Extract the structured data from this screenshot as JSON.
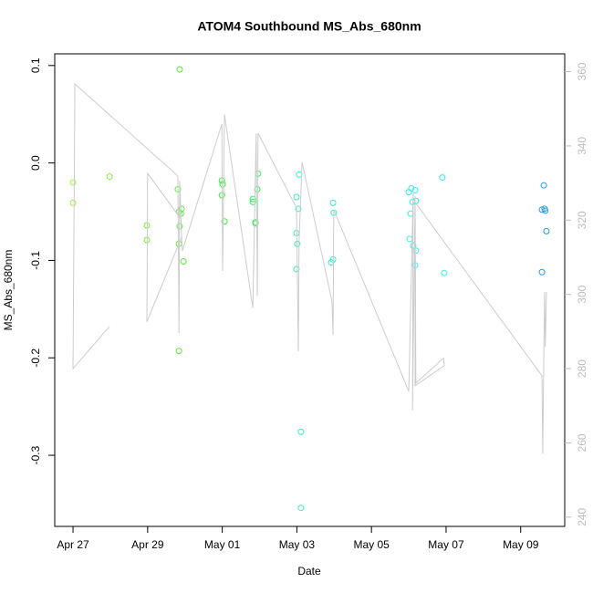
{
  "chart_data": {
    "type": "scatter",
    "title": "ATOM4 Southbound MS_Abs_680nm",
    "xlabel": "Date",
    "ylabel": "MS_Abs_680nm",
    "xlim": [
      -0.49,
      13.18
    ],
    "ylim": [
      -0.373,
      0.112
    ],
    "y2lim": [
      237.5,
      364.8
    ],
    "xticks": [
      {
        "value": 0,
        "label": "Apr 27"
      },
      {
        "value": 2,
        "label": "Apr 29"
      },
      {
        "value": 4,
        "label": "May 01"
      },
      {
        "value": 6,
        "label": "May 03"
      },
      {
        "value": 8,
        "label": "May 05"
      },
      {
        "value": 10,
        "label": "May 07"
      },
      {
        "value": 12,
        "label": "May 09"
      }
    ],
    "yticks": [
      -0.3,
      -0.2,
      -0.1,
      {
        "value": 0,
        "label": "0.0"
      },
      0.1
    ],
    "y2ticks": [
      240,
      260,
      280,
      300,
      320,
      340,
      360
    ],
    "y2color": "#bbbbbb",
    "series": [
      {
        "x": [
          0,
          0,
          0.98,
          1.98,
          1.98,
          2.86,
          2.81,
          2.84,
          2.86,
          2.84,
          2.91,
          2.89,
          2.96,
          2.84,
          3.99,
          4.01,
          3.99,
          4.06,
          4.82,
          4.82,
          4.89,
          4.89,
          4.94,
          4.96,
          5.99,
          6.04,
          5.99,
          6.01,
          5.99,
          6.06,
          6.11,
          6.11,
          6.97,
          6.99,
          6.92,
          6.97,
          9.0,
          9.07,
          9.17,
          9.05,
          9.02,
          9.12,
          9.19,
          9.1,
          9.19,
          9.17,
          9.9,
          9.95,
          12.62,
          12.57,
          12.64,
          12.66,
          12.69,
          12.57
        ],
        "values": [
          -0.02,
          -0.041,
          -0.014,
          -0.064,
          -0.079,
          0.096,
          -0.027,
          -0.05,
          -0.065,
          -0.083,
          -0.047,
          -0.052,
          -0.101,
          -0.193,
          -0.018,
          -0.022,
          -0.033,
          -0.06,
          -0.037,
          -0.04,
          -0.061,
          -0.062,
          -0.027,
          -0.011,
          -0.035,
          -0.047,
          -0.072,
          -0.083,
          -0.109,
          -0.012,
          -0.276,
          -0.354,
          -0.041,
          -0.051,
          -0.102,
          -0.099,
          -0.03,
          -0.026,
          -0.028,
          -0.052,
          -0.078,
          -0.085,
          -0.09,
          -0.04,
          -0.039,
          -0.105,
          -0.015,
          -0.113,
          -0.023,
          -0.048,
          -0.047,
          -0.049,
          -0.07,
          -0.112
        ],
        "colors": [
          "#99ee33",
          "#99ee33",
          "#88ee33",
          "#77ee33",
          "#77ee33",
          "#55ee33",
          "#55ee33",
          "#55ee33",
          "#55ee33",
          "#55ee33",
          "#55ee33",
          "#55ee33",
          "#55ee33",
          "#55ee33",
          "#33ee33",
          "#33ee33",
          "#33ee33",
          "#33ee33",
          "#33ee55",
          "#33ee55",
          "#33ee55",
          "#33ee55",
          "#33ee55",
          "#33ee55",
          "#33eebb",
          "#33eebb",
          "#33eebb",
          "#33eebb",
          "#33eebb",
          "#33eebb",
          "#33eebb",
          "#33eebb",
          "#33eecc",
          "#33eecc",
          "#33eecc",
          "#33eecc",
          "#33eeee",
          "#33eeee",
          "#33eeee",
          "#33eeee",
          "#33eeee",
          "#33eeee",
          "#33eeee",
          "#33eeee",
          "#33eeee",
          "#33eeee",
          "#33eeee",
          "#33eeee",
          "#2299ee",
          "#2299ee",
          "#2299ee",
          "#2299ee",
          "#2299ee",
          "#2299ee"
        ]
      },
      {
        "type": "line",
        "axis": "y2",
        "color": "#cccccc",
        "x": [
          0.98,
          0,
          0.05,
          2.81,
          2.84,
          2.86,
          2.91,
          1.98,
          2.0,
          2.89,
          2.93,
          3.99,
          4.01,
          4.06,
          4.82,
          4.84,
          4.91,
          4.94,
          4.96,
          5.99,
          6.04,
          6.06,
          6.14,
          6.94,
          6.97,
          6.99,
          9.0,
          9.12,
          9.1,
          9.17,
          9.19,
          9.93,
          9.95,
          9.17,
          9.17,
          12.57,
          12.59,
          12.64,
          12.66,
          12.69
        ],
        "values": [
          291.4,
          280.0,
          356.7,
          331.9,
          289.6,
          330.7,
          315.4,
          292.6,
          332.6,
          320.3,
          311.7,
          345.9,
          306.3,
          348.4,
          296.3,
          306.6,
          343.4,
          299.5,
          343.4,
          323.3,
          284.7,
          314.4,
          335.6,
          298.2,
          289.1,
          322.8,
          273.9,
          328.3,
          268.7,
          326.5,
          276.1,
          282.8,
          280.8,
          275.4,
          324.8,
          278.1,
          257.0,
          300.7,
          285.9,
          300.7
        ]
      }
    ]
  }
}
